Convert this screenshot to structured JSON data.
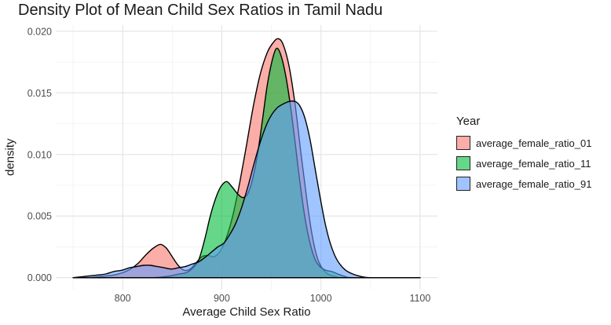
{
  "title": "Density Plot of Mean Child Sex Ratios in Tamil Nadu",
  "legend": {
    "title": "Year",
    "entries": [
      {
        "label": "average_female_ratio_01"
      },
      {
        "label": "average_female_ratio_11"
      },
      {
        "label": "average_female_ratio_91"
      }
    ]
  },
  "chart_data": {
    "type": "area",
    "subtype": "density",
    "title": "Density Plot of Mean Child Sex Ratios in Tamil Nadu",
    "xlabel": "Average Child Sex Ratio",
    "ylabel": "density",
    "legend_position": "right",
    "grid": true,
    "x_axis": {
      "ticks": [
        {
          "v": 800,
          "label": "800"
        },
        {
          "v": 900,
          "label": "900"
        },
        {
          "v": 1000,
          "label": "1000"
        },
        {
          "v": 1100,
          "label": "1100"
        }
      ],
      "minor_ticks": [
        750,
        850,
        950,
        1050
      ],
      "data_range": [
        750,
        1100
      ],
      "panel_domain": [
        732.5,
        1117.5
      ]
    },
    "y_axis": {
      "ticks": [
        {
          "v": 0,
          "label": "0.000"
        },
        {
          "v": 0.005,
          "label": "0.005"
        },
        {
          "v": 0.01,
          "label": "0.010"
        },
        {
          "v": 0.015,
          "label": "0.015"
        },
        {
          "v": 0.02,
          "label": "0.020"
        }
      ],
      "minor_ticks": [
        0.0025,
        0.0075,
        0.0125,
        0.0175
      ],
      "data_range": [
        0,
        0.0195
      ],
      "panel_domain": [
        -0.000975,
        0.0205
      ]
    },
    "style": {
      "fill_alpha": 0.6,
      "stroke_color": "#000000",
      "stroke_width": 1.4,
      "grid_major_color": "#E3E3E3",
      "grid_minor_color": "#F1F1F1",
      "tick_label_color": "#4D4D4D",
      "text_color": "#1A1A1A",
      "background": "#FFFFFF"
    },
    "series": [
      {
        "name": "average_female_ratio_01",
        "color": "#F8766D",
        "points": [
          [
            750,
            0
          ],
          [
            765,
            0
          ],
          [
            778,
            0.0001
          ],
          [
            790,
            0.0002
          ],
          [
            800,
            0.0004
          ],
          [
            808,
            0.0007
          ],
          [
            816,
            0.0012
          ],
          [
            824,
            0.0019
          ],
          [
            831,
            0.0024
          ],
          [
            838,
            0.0027
          ],
          [
            844,
            0.0024
          ],
          [
            850,
            0.0017
          ],
          [
            856,
            0.001
          ],
          [
            862,
            0.0006
          ],
          [
            868,
            0.0007
          ],
          [
            874,
            0.0012
          ],
          [
            880,
            0.0017
          ],
          [
            886,
            0.0018
          ],
          [
            892,
            0.0017
          ],
          [
            898,
            0.0021
          ],
          [
            904,
            0.0031
          ],
          [
            911,
            0.005
          ],
          [
            918,
            0.0077
          ],
          [
            925,
            0.0108
          ],
          [
            932,
            0.014
          ],
          [
            939,
            0.0166
          ],
          [
            946,
            0.0183
          ],
          [
            952,
            0.0191
          ],
          [
            957,
            0.0194
          ],
          [
            962,
            0.0189
          ],
          [
            968,
            0.0171
          ],
          [
            974,
            0.014
          ],
          [
            980,
            0.01
          ],
          [
            986,
            0.0062
          ],
          [
            991,
            0.0035
          ],
          [
            996,
            0.0017
          ],
          [
            1001,
            0.0008
          ],
          [
            1007,
            0.0003
          ],
          [
            1014,
            0.0001
          ],
          [
            1022,
            0
          ],
          [
            1060,
            0
          ],
          [
            1100,
            0
          ]
        ]
      },
      {
        "name": "average_female_ratio_11",
        "color": "#00BA38",
        "points": [
          [
            750,
            0
          ],
          [
            800,
            0
          ],
          [
            830,
            0
          ],
          [
            845,
            0.0001
          ],
          [
            857,
            0.0003
          ],
          [
            864,
            0.0004
          ],
          [
            871,
            0.0008
          ],
          [
            877,
            0.0015
          ],
          [
            883,
            0.0032
          ],
          [
            889,
            0.0052
          ],
          [
            895,
            0.0067
          ],
          [
            900,
            0.0075
          ],
          [
            905,
            0.0078
          ],
          [
            910,
            0.0074
          ],
          [
            916,
            0.0068
          ],
          [
            921,
            0.0065
          ],
          [
            926,
            0.0068
          ],
          [
            931,
            0.008
          ],
          [
            936,
            0.01
          ],
          [
            941,
            0.0128
          ],
          [
            946,
            0.0157
          ],
          [
            951,
            0.0177
          ],
          [
            955,
            0.0186
          ],
          [
            959,
            0.0182
          ],
          [
            964,
            0.0166
          ],
          [
            969,
            0.0141
          ],
          [
            974,
            0.0109
          ],
          [
            979,
            0.0076
          ],
          [
            984,
            0.0048
          ],
          [
            989,
            0.0028
          ],
          [
            994,
            0.0015
          ],
          [
            999,
            0.0009
          ],
          [
            1005,
            0.0006
          ],
          [
            1011,
            0.0005
          ],
          [
            1017,
            0.0003
          ],
          [
            1024,
            0.0001
          ],
          [
            1032,
            0
          ],
          [
            1070,
            0
          ],
          [
            1100,
            0
          ]
        ]
      },
      {
        "name": "average_female_ratio_91",
        "color": "#619CFF",
        "points": [
          [
            750,
            0
          ],
          [
            762,
            0.0001
          ],
          [
            773,
            0.0002
          ],
          [
            783,
            0.0003
          ],
          [
            791,
            0.0005
          ],
          [
            799,
            0.0006
          ],
          [
            807,
            0.0008
          ],
          [
            814,
            0.0009
          ],
          [
            821,
            0.001
          ],
          [
            828,
            0.001
          ],
          [
            835,
            0.0009
          ],
          [
            842,
            0.0008
          ],
          [
            849,
            0.0007
          ],
          [
            856,
            0.0008
          ],
          [
            863,
            0.0009
          ],
          [
            870,
            0.0011
          ],
          [
            877,
            0.0013
          ],
          [
            884,
            0.0017
          ],
          [
            890,
            0.0021
          ],
          [
            896,
            0.0025
          ],
          [
            902,
            0.0028
          ],
          [
            908,
            0.0035
          ],
          [
            914,
            0.0044
          ],
          [
            920,
            0.0057
          ],
          [
            926,
            0.0073
          ],
          [
            932,
            0.0091
          ],
          [
            938,
            0.0108
          ],
          [
            944,
            0.0122
          ],
          [
            950,
            0.0132
          ],
          [
            956,
            0.0138
          ],
          [
            962,
            0.0141
          ],
          [
            968,
            0.0143
          ],
          [
            974,
            0.0143
          ],
          [
            979,
            0.0139
          ],
          [
            984,
            0.0129
          ],
          [
            989,
            0.0112
          ],
          [
            994,
            0.0089
          ],
          [
            999,
            0.0066
          ],
          [
            1004,
            0.0045
          ],
          [
            1009,
            0.0029
          ],
          [
            1014,
            0.0018
          ],
          [
            1019,
            0.0011
          ],
          [
            1025,
            0.0006
          ],
          [
            1032,
            0.0003
          ],
          [
            1040,
            0.0001
          ],
          [
            1050,
            0
          ],
          [
            1075,
            0
          ],
          [
            1100,
            0
          ]
        ]
      }
    ]
  }
}
